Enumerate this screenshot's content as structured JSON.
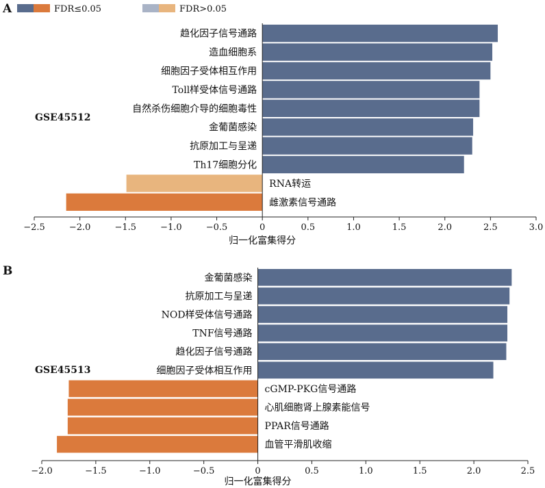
{
  "legend": {
    "items": [
      {
        "label": "FDR≤0.05",
        "colors": [
          "#596c8d",
          "#db7a3c"
        ]
      },
      {
        "label": "FDR>0.05",
        "colors": [
          "#a9b3c6",
          "#e8b57e"
        ]
      }
    ]
  },
  "colors": {
    "sig_pos": "#596c8d",
    "sig_neg": "#db7a3c",
    "nonsig_pos": "#a9b3c6",
    "nonsig_neg": "#e8b57e"
  },
  "chart_data": [
    {
      "type": "bar",
      "orientation": "horizontal",
      "panel": "A",
      "dataset": "GSE45512",
      "xlabel": "归一化富集得分",
      "xlim": [
        -2.5,
        3.0
      ],
      "xticks": [
        "−2.5",
        "−2.0",
        "−1.5",
        "−1.0",
        "−0.5",
        "0",
        "0.5",
        "1.0",
        "1.5",
        "2.0",
        "2.5",
        "3.0"
      ],
      "xtick_values": [
        -2.5,
        -2.0,
        -1.5,
        -1.0,
        -0.5,
        0,
        0.5,
        1.0,
        1.5,
        2.0,
        2.5,
        3.0
      ],
      "categories": [
        "趋化因子信号通路",
        "造血细胞系",
        "细胞因子受体相互作用",
        "Toll样受体信号通路",
        "自然杀伤细胞介导的细胞毒性",
        "金葡菌感染",
        "抗原加工与呈递",
        "Th17细胞分化",
        "RNA转运",
        "雌激素信号通路"
      ],
      "values": [
        2.58,
        2.52,
        2.5,
        2.38,
        2.38,
        2.31,
        2.3,
        2.21,
        -1.49,
        -2.15
      ],
      "fdr_significant": [
        true,
        true,
        true,
        true,
        true,
        true,
        true,
        true,
        false,
        true
      ]
    },
    {
      "type": "bar",
      "orientation": "horizontal",
      "panel": "B",
      "dataset": "GSE45513",
      "xlabel": "归一化富集得分",
      "xlim": [
        -2.0,
        2.5
      ],
      "xticks": [
        "−2.0",
        "−1.5",
        "−1.0",
        "−0.5",
        "0",
        "0.5",
        "1.0",
        "1.5",
        "2.0",
        "2.5"
      ],
      "xtick_values": [
        -2.0,
        -1.5,
        -1.0,
        -0.5,
        0,
        0.5,
        1.0,
        1.5,
        2.0,
        2.5
      ],
      "categories": [
        "金葡菌感染",
        "抗原加工与呈递",
        "NOD样受体信号通路",
        "TNF信号通路",
        "趋化因子信号通路",
        "细胞因子受体相互作用",
        "cGMP-PKG信号通路",
        "心肌细胞肾上腺素能信号",
        "PPAR信号通路",
        "血管平滑肌收缩"
      ],
      "values": [
        2.35,
        2.33,
        2.31,
        2.31,
        2.3,
        2.18,
        -1.75,
        -1.76,
        -1.76,
        -1.86
      ],
      "fdr_significant": [
        true,
        true,
        true,
        true,
        true,
        true,
        true,
        true,
        true,
        true
      ]
    }
  ]
}
